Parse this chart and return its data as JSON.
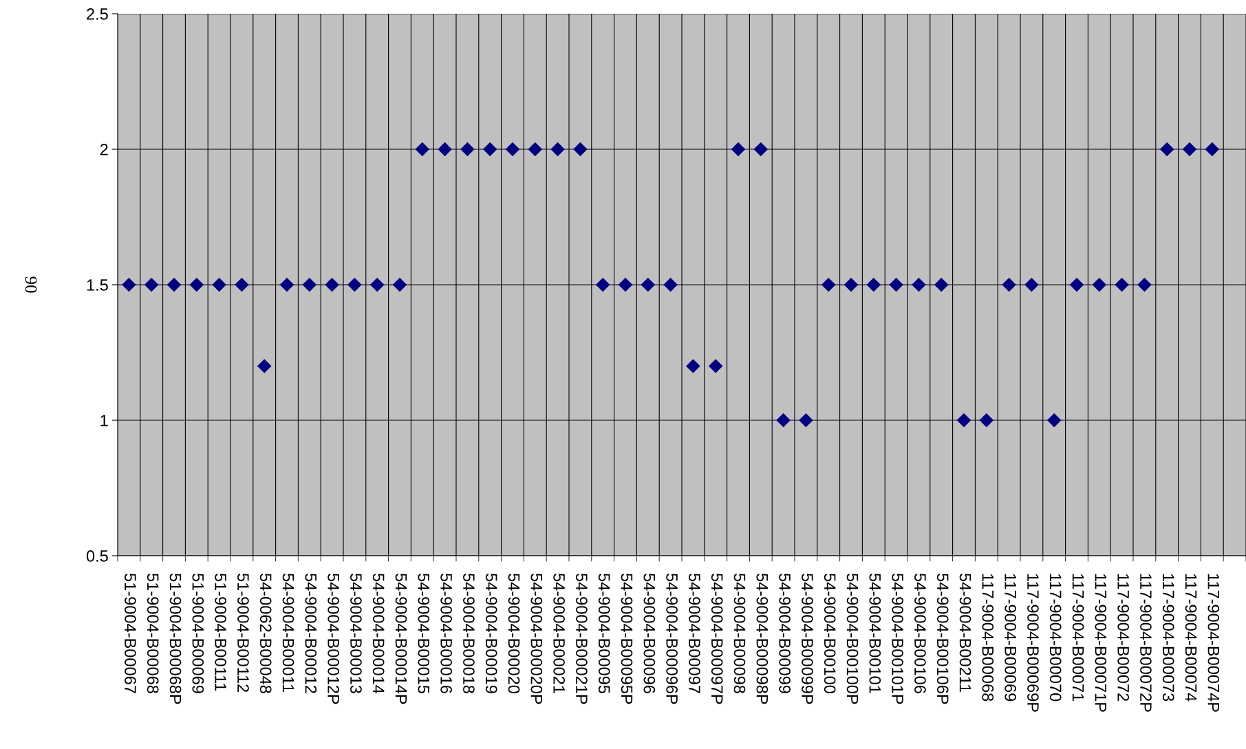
{
  "chart_data": {
    "type": "scatter",
    "ylabel": "90",
    "categories": [
      "51-9004-B00067",
      "51-9004-B00068",
      "51-9004-B00068P",
      "51-9004-B00069",
      "51-9004-B00111",
      "51-9004-B00112",
      "54-0062-B00048",
      "54-9004-B00011",
      "54-9004-B00012",
      "54-9004-B00012P",
      "54-9004-B00013",
      "54-9004-B00014",
      "54-9004-B00014P",
      "54-9004-B00015",
      "54-9004-B00016",
      "54-9004-B00018",
      "54-9004-B00019",
      "54-9004-B00020",
      "54-9004-B00020P",
      "54-9004-B00021",
      "54-9004-B00021P",
      "54-9004-B00095",
      "54-9004-B00095P",
      "54-9004-B00096",
      "54-9004-B00096P",
      "54-9004-B00097",
      "54-9004-B00097P",
      "54-9004-B00098",
      "54-9004-B00098P",
      "54-9004-B00099",
      "54-9004-B00099P",
      "54-9004-B00100",
      "54-9004-B00100P",
      "54-9004-B00101",
      "54-9004-B00101P",
      "54-9004-B00106",
      "54-9004-B00106P",
      "54-9004-B00211",
      "117-9004-B00068",
      "117-9004-B00069",
      "117-9004-B00069P",
      "117-9004-B00070",
      "117-9004-B00071",
      "117-9004-B00071P",
      "117-9004-B00072",
      "117-9004-B00072P",
      "117-9004-B00073",
      "117-9004-B00074",
      "117-9004-B00074P",
      null
    ],
    "values": [
      1.5,
      1.5,
      1.5,
      1.5,
      1.5,
      1.5,
      1.2,
      1.5,
      1.5,
      1.5,
      1.5,
      1.5,
      1.5,
      2,
      2,
      2,
      2,
      2,
      2,
      2,
      2,
      1.5,
      1.5,
      1.5,
      1.5,
      1.2,
      1.2,
      2,
      2,
      1,
      1,
      1.5,
      1.5,
      1.5,
      1.5,
      1.5,
      1.5,
      1,
      1,
      1.5,
      1.5,
      1,
      1.5,
      1.5,
      1.5,
      1.5,
      2,
      2,
      2,
      null
    ],
    "color": "#000080",
    "marker": "diamond",
    "ylim": [
      0.5,
      2.5
    ],
    "yticks": [
      0.5,
      1,
      1.5,
      2,
      2.5
    ],
    "grid": true,
    "legend": false
  }
}
